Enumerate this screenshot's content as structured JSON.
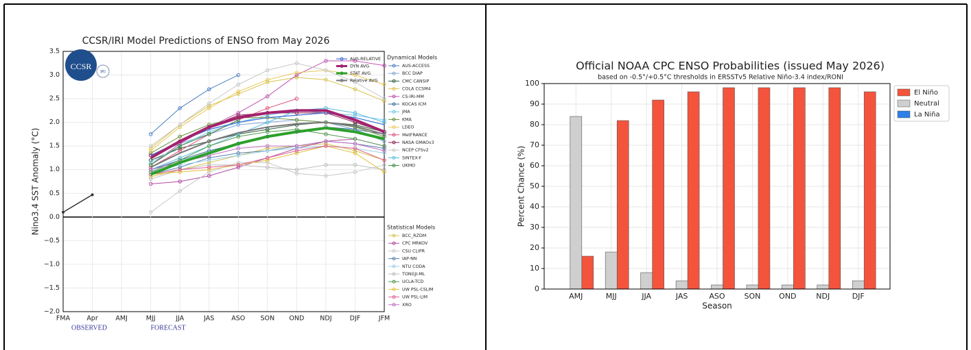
{
  "chart_data": [
    {
      "type": "line",
      "title": "CCSR/IRI Model Predictions of ENSO from May 2026",
      "y_label": "Nino3.4 SST Anomaly (°C)",
      "logo_text": "CCSR",
      "logo_sub": "IRI",
      "observed_label": "OBSERVED",
      "forecast_label": "FORECAST",
      "legend_headers": {
        "dynamical": "Dynamical Models",
        "statistical": "Statistical Models"
      },
      "categories": [
        "FMA",
        "Apr",
        "AMJ",
        "MJJ",
        "JJA",
        "JAS",
        "ASO",
        "SON",
        "OND",
        "NDJ",
        "DJF",
        "JFM"
      ],
      "ylim": [
        -2,
        3.5
      ],
      "yticks": [
        {
          "value": -2,
          "label": "−2.0"
        },
        {
          "value": -1.5,
          "label": "−1.5"
        },
        {
          "value": -1,
          "label": "−1.0"
        },
        {
          "value": -0.5,
          "label": "−0.5"
        },
        {
          "value": 0,
          "label": "0.0"
        },
        0.5,
        {
          "value": 1,
          "label": "1.0"
        },
        1.5,
        {
          "value": 2,
          "label": "2.0"
        },
        2.5,
        {
          "value": 3,
          "label": "3.0"
        },
        3.5
      ],
      "grid": true,
      "observed": [
        0.1,
        0.47,
        null,
        null,
        null,
        null,
        null,
        null,
        null,
        null,
        null,
        null
      ],
      "series": [
        {
          "name": "AUS-RELATIVE",
          "group": "average",
          "color": "#3b6fd4",
          "line_width": 1.2,
          "values": [
            null,
            null,
            null,
            1.3,
            1.6,
            1.85,
            2.0,
            2.1,
            2.15,
            2.2,
            2.1,
            1.95
          ]
        },
        {
          "name": "DYN AVG",
          "group": "average",
          "color": "#a3226e",
          "line_width": 4,
          "values": [
            null,
            null,
            null,
            1.25,
            1.6,
            1.9,
            2.1,
            2.2,
            2.25,
            2.25,
            2.05,
            1.8
          ]
        },
        {
          "name": "STAT AVG",
          "group": "average",
          "color": "#2ca02c",
          "line_width": 4,
          "values": [
            null,
            null,
            null,
            0.9,
            1.15,
            1.35,
            1.55,
            1.7,
            1.8,
            1.88,
            1.8,
            1.65
          ]
        },
        {
          "name": "Relative AVG",
          "group": "average",
          "color": "#777777",
          "line_width": 2,
          "values": [
            null,
            null,
            null,
            1.05,
            1.35,
            1.6,
            1.78,
            1.9,
            1.97,
            2.0,
            1.92,
            1.75
          ]
        },
        {
          "name": "AUS-ACCESS",
          "group": "dynamical",
          "color": "#4a7fc1",
          "values": [
            null,
            null,
            null,
            1.75,
            2.3,
            2.7,
            3.0,
            null,
            null,
            null,
            null,
            null
          ]
        },
        {
          "name": "BCC DIAP",
          "group": "dynamical",
          "color": "#7fa6d8",
          "values": [
            null,
            null,
            null,
            1.3,
            1.55,
            1.75,
            1.95,
            2.0,
            2.05,
            2.0,
            1.85,
            1.6
          ]
        },
        {
          "name": "CMC CANSIP",
          "group": "dynamical",
          "color": "#2d5a3a",
          "values": [
            null,
            null,
            null,
            1.2,
            1.45,
            1.6,
            1.75,
            1.85,
            1.95,
            2.0,
            1.95,
            1.8
          ]
        },
        {
          "name": "COLA CCSM4",
          "group": "dynamical",
          "color": "#d8c24a",
          "values": [
            null,
            null,
            null,
            1.45,
            1.95,
            2.35,
            2.6,
            2.85,
            2.95,
            2.9,
            2.7,
            2.45
          ]
        },
        {
          "name": "CS-IRI-MM",
          "group": "dynamical",
          "color": "#c04fb0",
          "values": [
            null,
            null,
            null,
            1.1,
            1.55,
            1.9,
            2.2,
            2.55,
            3.0,
            3.3,
            3.3,
            3.2
          ]
        },
        {
          "name": "KOCAS ICM",
          "group": "dynamical",
          "color": "#3c6fa0",
          "values": [
            null,
            null,
            null,
            1.0,
            1.2,
            1.4,
            1.55,
            1.7,
            1.8,
            1.9,
            1.85,
            1.75
          ]
        },
        {
          "name": "JMA",
          "group": "dynamical",
          "color": "#6fc6e6",
          "values": [
            null,
            null,
            null,
            1.15,
            1.5,
            1.8,
            2.0,
            2.15,
            2.25,
            2.2,
            2.15,
            2.05
          ]
        },
        {
          "name": "KMA",
          "group": "dynamical",
          "color": "#6a8f3a",
          "values": [
            null,
            null,
            null,
            1.35,
            1.7,
            1.95,
            2.1,
            2.1,
            2.05,
            2.0,
            1.9,
            1.7
          ]
        },
        {
          "name": "LDEO",
          "group": "dynamical",
          "color": "#e8c85a",
          "values": [
            null,
            null,
            null,
            1.4,
            1.9,
            2.3,
            2.65,
            2.9,
            3.05,
            3.1,
            3.0,
            2.8
          ]
        },
        {
          "name": "MetFRANCE",
          "group": "dynamical",
          "color": "#e0507a",
          "values": [
            null,
            null,
            null,
            1.05,
            1.4,
            1.75,
            2.05,
            2.3,
            2.5,
            null,
            null,
            null
          ]
        },
        {
          "name": "NASA GMAOv3",
          "group": "dynamical",
          "color": "#8a2050",
          "values": [
            null,
            null,
            null,
            1.3,
            1.6,
            1.9,
            2.15,
            2.2,
            2.2,
            2.2,
            2.0,
            1.8
          ]
        },
        {
          "name": "NCEP CFSv2",
          "group": "dynamical",
          "color": "#c8c8c8",
          "values": [
            null,
            null,
            null,
            1.5,
            1.95,
            2.4,
            2.8,
            3.1,
            3.25,
            3.1,
            2.85,
            2.5
          ]
        },
        {
          "name": "SINTEX-F",
          "group": "dynamical",
          "color": "#56b8e0",
          "values": [
            null,
            null,
            null,
            1.0,
            1.25,
            1.5,
            1.75,
            2.0,
            2.25,
            2.3,
            2.2,
            2.0
          ]
        },
        {
          "name": "UKMO",
          "group": "dynamical",
          "color": "#3a8a3a",
          "values": [
            null,
            null,
            null,
            1.1,
            1.5,
            1.75,
            2.05,
            null,
            null,
            null,
            null,
            null
          ]
        },
        {
          "name": "BCC_RZDM",
          "group": "statistical",
          "color": "#d8c050",
          "values": [
            null,
            null,
            null,
            0.85,
            1.0,
            1.15,
            1.3,
            1.45,
            1.5,
            1.55,
            1.4,
            1.2
          ]
        },
        {
          "name": "CPC MRKOV",
          "group": "statistical",
          "color": "#b04aa0",
          "values": [
            null,
            null,
            null,
            0.7,
            0.75,
            0.87,
            1.05,
            1.25,
            1.45,
            1.6,
            1.65,
            1.5
          ]
        },
        {
          "name": "CSU CLIPR",
          "group": "statistical",
          "color": "#c8c8c8",
          "values": [
            null,
            null,
            null,
            0.1,
            0.55,
            0.95,
            1.15,
            1.15,
            0.92,
            0.87,
            0.95,
            1.1
          ]
        },
        {
          "name": "IAP-NN",
          "group": "statistical",
          "color": "#5a7fb0",
          "values": [
            null,
            null,
            null,
            0.9,
            1.05,
            1.25,
            1.35,
            1.4,
            1.5,
            1.6,
            1.55,
            1.45
          ]
        },
        {
          "name": "NTU CODA",
          "group": "statistical",
          "color": "#9ad0e8",
          "values": [
            null,
            null,
            null,
            0.95,
            1.1,
            1.2,
            1.3,
            1.4,
            1.45,
            1.5,
            1.45,
            1.35
          ]
        },
        {
          "name": "TONGJI-ML",
          "group": "statistical",
          "color": "#bbbbbb",
          "values": [
            null,
            null,
            null,
            0.8,
            1.0,
            1.1,
            1.1,
            1.05,
            1.0,
            1.1,
            1.1,
            1.0
          ]
        },
        {
          "name": "UCLA-TCD",
          "group": "statistical",
          "color": "#4f9a4f",
          "values": [
            null,
            null,
            null,
            0.95,
            1.2,
            1.5,
            1.7,
            1.8,
            1.85,
            1.75,
            1.65,
            1.5
          ]
        },
        {
          "name": "UW PSL-CSLIM",
          "group": "statistical",
          "color": "#e0c040",
          "values": [
            null,
            null,
            null,
            0.9,
            0.95,
            1.0,
            1.1,
            1.2,
            1.35,
            1.5,
            1.35,
            0.95
          ]
        },
        {
          "name": "UW PSL-LIM",
          "group": "statistical",
          "color": "#e06090",
          "values": [
            null,
            null,
            null,
            0.9,
            1.0,
            1.05,
            1.1,
            1.25,
            1.4,
            1.5,
            1.45,
            1.2
          ]
        },
        {
          "name": "XRO",
          "group": "statistical",
          "color": "#c070c0",
          "values": [
            null,
            null,
            null,
            1.0,
            1.15,
            1.3,
            1.45,
            1.5,
            1.5,
            1.6,
            1.55,
            1.4
          ]
        }
      ]
    },
    {
      "type": "bar",
      "title": "Official NOAA CPC ENSO Probabilities (issued May 2026)",
      "subtitle": "based on -0.5°/+0.5°C thresholds in ERSSTv5 Relative Niño-3.4 index/RONI",
      "x_label": "Season",
      "y_label": "Percent Chance (%)",
      "categories": [
        "AMJ",
        "MJJ",
        "JJA",
        "JAS",
        "ASO",
        "SON",
        "OND",
        "NDJ",
        "DJF"
      ],
      "ylim": [
        0,
        100
      ],
      "yticks": [
        0,
        10,
        20,
        30,
        40,
        50,
        60,
        70,
        80,
        90,
        100
      ],
      "grid": true,
      "legend": "upper right outside",
      "series": [
        {
          "name": "El Niño",
          "color": "#f4543c",
          "values": [
            16,
            82,
            92,
            96,
            98,
            98,
            98,
            98,
            96
          ]
        },
        {
          "name": "Neutral",
          "color": "#cfcfcf",
          "values": [
            84,
            18,
            8,
            4,
            2,
            2,
            2,
            2,
            4
          ]
        },
        {
          "name": "La Niña",
          "color": "#2f7fe8",
          "values": [
            0,
            0,
            0,
            0,
            0,
            0,
            0,
            0,
            0
          ]
        }
      ]
    }
  ]
}
